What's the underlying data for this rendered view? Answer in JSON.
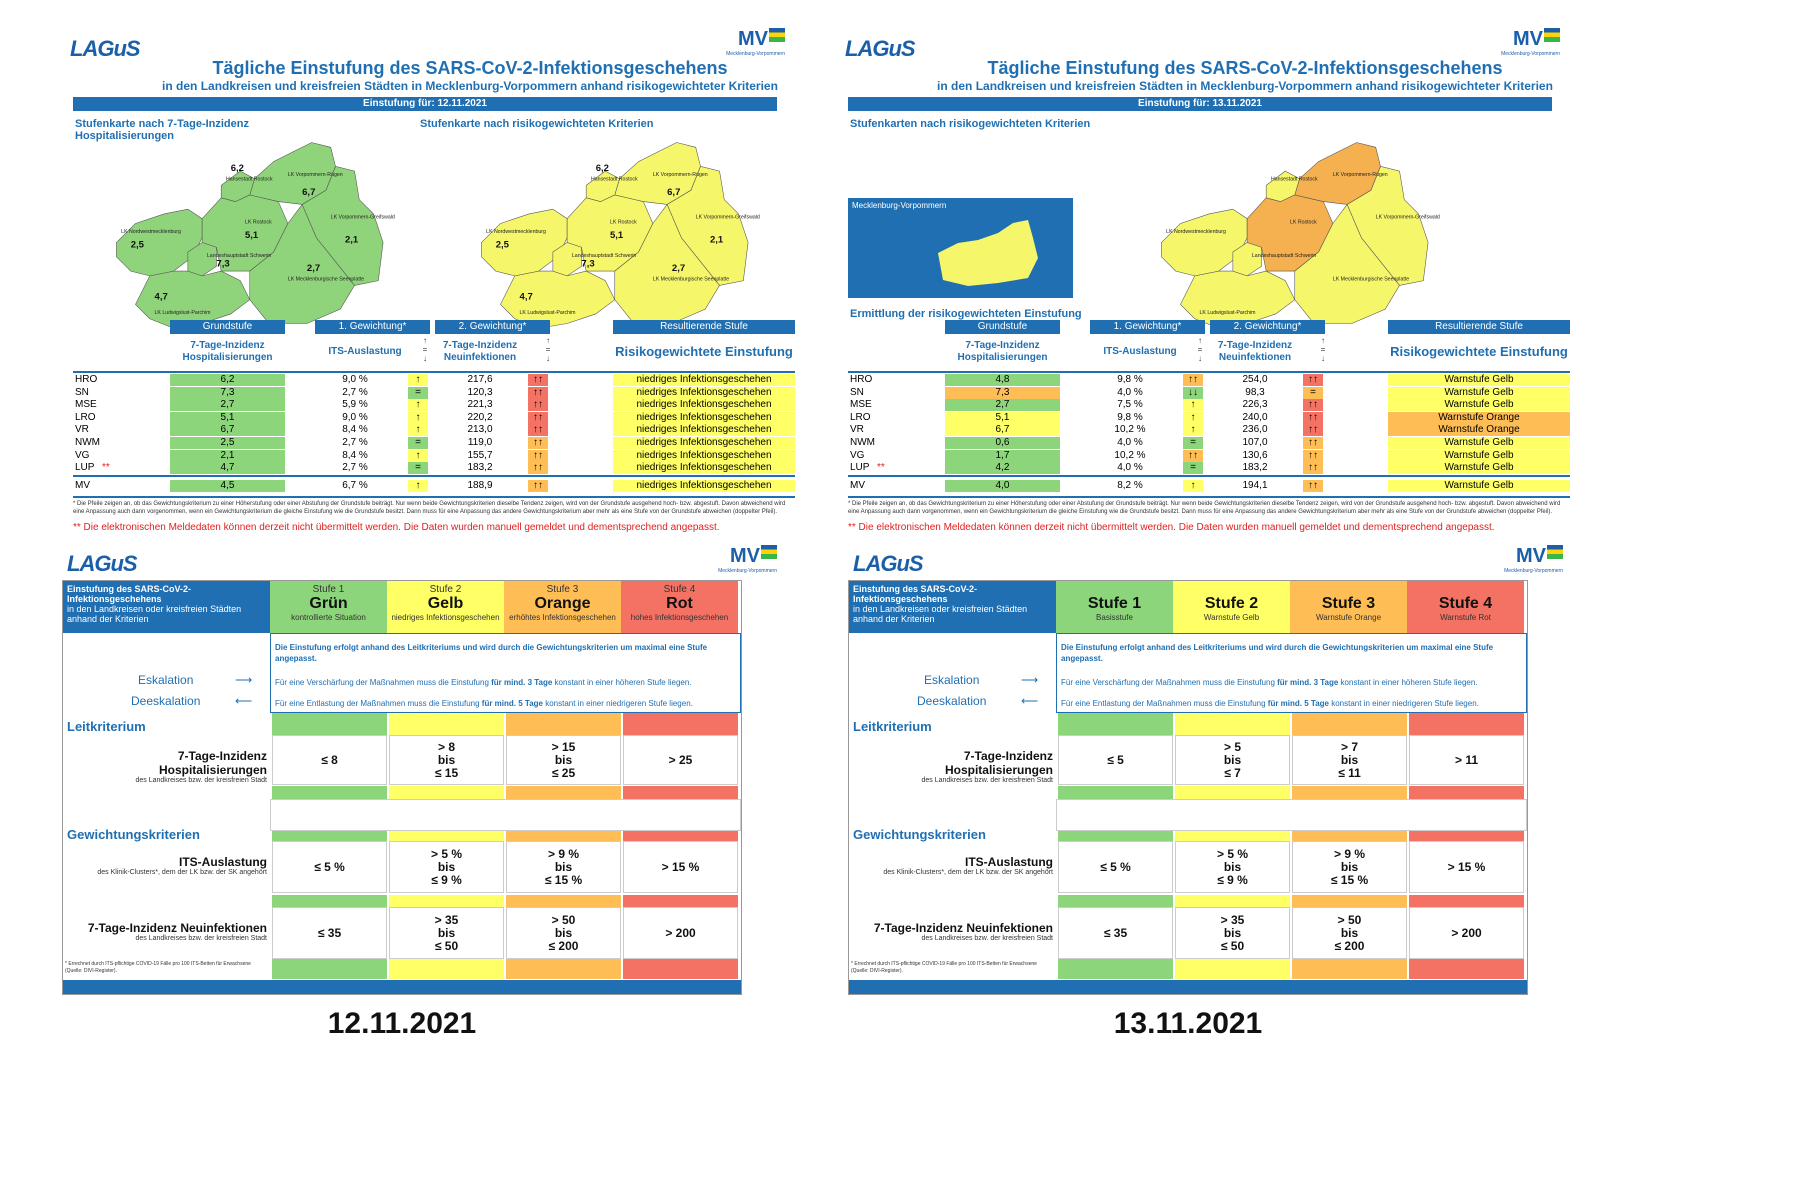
{
  "logos": {
    "lagus": "LAGuS",
    "mv": "MV",
    "mv_sub": "Mecklenburg-Vorpommern"
  },
  "colors": {
    "green": "#8cd57a",
    "yellow": "#ffff66",
    "orange": "#ffbe55",
    "red": "#f47264",
    "blue": "#1f6fb2",
    "map_green": "#8fd47a",
    "map_yellow": "#f6f66a",
    "map_orange": "#f5b04f"
  },
  "reports": [
    {
      "title": "Tägliche Einstufung des SARS-CoV-2-Infektionsgeschehens",
      "subtitle": "in den Landkreisen und kreisfreien Städten in Mecklenburg-Vorpommern anhand risikogewichteter Kriterien",
      "bar": "Einstufung für:   12.11.2021",
      "map1_title": "Stufenkarte nach 7-Tage-Inzidenz Hospitalisierungen",
      "map2_title": "Stufenkarte nach risikogewichteten Kriterien",
      "map_values": {
        "hro": "6,2",
        "vr": "6,7",
        "lro": "5,1",
        "nwm": "2,5",
        "vg": "2,1",
        "sn": "7,3",
        "mse": "2,7",
        "lup": "4,7"
      },
      "map_labels": {
        "hro": "Hansestadt Rostock",
        "vr": "LK Vorpommern-Rügen",
        "lro": "LK Rostock",
        "nwm": "LK Nordwestmecklenburg",
        "vg": "LK Vorpommern-Greifswald",
        "sn": "Landeshauptstadt Schwerin",
        "mse": "LK Mecklenburgische Seenplatte",
        "lup": "LK Ludwigslust-Parchim"
      },
      "headers": {
        "grundstufe": "Grundstufe",
        "g1": "1. Gewichtung*",
        "g2": "2. Gewichtung*",
        "result": "Resultierende Stufe",
        "c1": "7-Tage-Inzidenz Hospitalisierungen",
        "c2": "ITS-Auslastung",
        "c3": "7-Tage-Inzidenz Neuinfektionen",
        "c4": "Risikogewichtete Einstufung"
      },
      "rows": [
        {
          "name": "HRO",
          "v1": "6,2",
          "v2": "9,0 %",
          "a1": "↑",
          "v3": "217,6",
          "a2": "↑↑",
          "res": "niedriges Infektionsgeschehen"
        },
        {
          "name": "SN",
          "v1": "7,3",
          "v2": "2,7 %",
          "a1": "=",
          "v3": "120,3",
          "a2": "↑↑",
          "res": "niedriges Infektionsgeschehen"
        },
        {
          "name": "MSE",
          "v1": "2,7",
          "v2": "5,9 %",
          "a1": "↑",
          "v3": "221,3",
          "a2": "↑↑",
          "res": "niedriges Infektionsgeschehen"
        },
        {
          "name": "LRO",
          "v1": "5,1",
          "v2": "9,0 %",
          "a1": "↑",
          "v3": "220,2",
          "a2": "↑↑",
          "res": "niedriges Infektionsgeschehen"
        },
        {
          "name": "VR",
          "v1": "6,7",
          "v2": "8,4 %",
          "a1": "↑",
          "v3": "213,0",
          "a2": "↑↑",
          "res": "niedriges Infektionsgeschehen"
        },
        {
          "name": "NWM",
          "v1": "2,5",
          "v2": "2,7 %",
          "a1": "=",
          "v3": "119,0",
          "a2": "↑↑",
          "res": "niedriges Infektionsgeschehen"
        },
        {
          "name": "VG",
          "v1": "2,1",
          "v2": "8,4 %",
          "a1": "↑",
          "v3": "155,7",
          "a2": "↑↑",
          "res": "niedriges Infektionsgeschehen"
        },
        {
          "name": "LUP",
          "v1": "4,7",
          "v2": "2,7 %",
          "a1": "=",
          "v3": "183,2",
          "a2": "↑↑",
          "res": "niedriges Infektionsgeschehen"
        }
      ],
      "mv": {
        "name": "MV",
        "v1": "4,5",
        "v2": "6,7 %",
        "a1": "↑",
        "v3": "188,9",
        "a2": "↑↑",
        "res": "niedriges Infektionsgeschehen"
      },
      "footnote": "* Die Pfeile zeigen an, ob das Gewichtungskriterium zu einer Höherstufung oder einer Abstufung der Grundstufe beiträgt. Nur wenn beide Gewichtungskriterien dieselbe Tendenz zeigen, wird von der Grundstufe ausgehend hoch- bzw. abgestuft.  Davon abweichend wird eine Anpassung auch dann vorgenommen, wenn ein Gewichtungskriterium die gleiche Einstufung wie die Grundstufe besitzt. Dann muss für eine Anpassung das andere Gewichtungskriterium aber mehr als eine Stufe von der Grundstufe abweichen (doppelter Pfeil).",
      "red_note": "** Die elektronischen Meldedaten können derzeit nicht übermittelt werden. Die Daten wurden manuell gemeldet und dementsprechend angepasst."
    },
    {
      "title": "Tägliche Einstufung des SARS-CoV-2-Infektionsgeschehens",
      "subtitle": "in den Landkreisen und kreisfreien Städten in Mecklenburg-Vorpommern anhand risikogewichteter Kriterien",
      "bar": "Einstufung für:   13.11.2021",
      "map2_title": "Stufenkarten nach risikogewichteten Kriterien",
      "inset_title": "Mecklenburg-Vorpommern",
      "section": "Ermittlung der risikogewichteten Einstufung",
      "map_labels": {
        "hro": "Hansestadt Rostock",
        "vr": "LK Vorpommern-Rügen",
        "lro": "LK Rostock",
        "nwm": "LK Nordwestmecklenburg",
        "vg": "LK Vorpommern-Greifswald",
        "sn": "Landeshauptstadt Schwerin",
        "mse": "LK Mecklenburgische Seenplatte",
        "lup": "LK Ludwigslust-Parchim"
      },
      "headers": {
        "grundstufe": "Grundstufe",
        "g1": "1. Gewichtung*",
        "g2": "2. Gewichtung*",
        "result": "Resultierende Stufe",
        "c1": "7-Tage-Inzidenz Hospitalisierungen",
        "c2": "ITS-Auslastung",
        "c3": "7-Tage-Inzidenz Neuinfektionen",
        "c4": "Risikogewichtete Einstufung"
      },
      "rows": [
        {
          "name": "HRO",
          "v1": "4,8",
          "v2": "9,8 %",
          "a1": "↑↑",
          "v3": "254,0",
          "a2": "↑↑",
          "res": "Warnstufe Gelb"
        },
        {
          "name": "SN",
          "v1": "7,3",
          "v2": "4,0 %",
          "a1": "↓↓",
          "v3": "98,3",
          "a2": "=",
          "res": "Warnstufe Gelb"
        },
        {
          "name": "MSE",
          "v1": "2,7",
          "v2": "7,5 %",
          "a1": "↑",
          "v3": "226,3",
          "a2": "↑↑",
          "res": "Warnstufe Gelb"
        },
        {
          "name": "LRO",
          "v1": "5,1",
          "v2": "9,8 %",
          "a1": "↑",
          "v3": "240,0",
          "a2": "↑↑",
          "res": "Warnstufe Orange"
        },
        {
          "name": "VR",
          "v1": "6,7",
          "v2": "10,2 %",
          "a1": "↑",
          "v3": "236,0",
          "a2": "↑↑",
          "res": "Warnstufe Orange"
        },
        {
          "name": "NWM",
          "v1": "0,6",
          "v2": "4,0 %",
          "a1": "=",
          "v3": "107,0",
          "a2": "↑↑",
          "res": "Warnstufe Gelb"
        },
        {
          "name": "VG",
          "v1": "1,7",
          "v2": "10,2 %",
          "a1": "↑↑",
          "v3": "130,6",
          "a2": "↑↑",
          "res": "Warnstufe Gelb"
        },
        {
          "name": "LUP",
          "v1": "4,2",
          "v2": "4,0 %",
          "a1": "=",
          "v3": "183,2",
          "a2": "↑↑",
          "res": "Warnstufe Gelb"
        }
      ],
      "mv": {
        "name": "MV",
        "v1": "4,0",
        "v2": "8,2 %",
        "a1": "↑",
        "v3": "194,1",
        "a2": "↑↑",
        "res": "Warnstufe Gelb"
      },
      "footnote": "* Die Pfeile zeigen an, ob das Gewichtungskriterium zu einer Höherstufung oder einer Abstufung der Grundstufe beiträgt. Nur wenn beide Gewichtungskriterien dieselbe Tendenz zeigen, wird von der Grundstufe ausgehend hoch- bzw. abgestuft.  Davon abweichend wird eine Anpassung auch dann vorgenommen, wenn ein Gewichtungskriterium die gleiche Einstufung wie die Grundstufe besitzt. Dann muss für eine Anpassung das andere Gewichtungskriterium aber mehr als eine Stufe von der Grundstufe abweichen (doppelter Pfeil).",
      "red_note": "** Die elektronischen Meldedaten können derzeit nicht übermittelt werden. Die Daten wurden manuell gemeldet und dementsprechend angepasst."
    }
  ],
  "criteria": [
    {
      "head": "Einstufung des SARS-CoV-2-Infektionsgeschehens",
      "head_sub": "in den Landkreisen oder kreisfreien Städten anhand der Kriterien",
      "levels": [
        {
          "small": "Stufe 1",
          "big": "Grün",
          "sub": "kontrollierte Situation"
        },
        {
          "small": "Stufe 2",
          "big": "Gelb",
          "sub": "niedriges Infektionsgeschehen"
        },
        {
          "small": "Stufe 3",
          "big": "Orange",
          "sub": "erhöhtes Infektionsgeschehen"
        },
        {
          "small": "Stufe 4",
          "big": "Rot",
          "sub": "hohes Infektionsgeschehen"
        }
      ],
      "info": "Die Einstufung erfolgt anhand des Leitkriteriums und wird durch die Gewichtungskriterien um maximal eine Stufe angepasst.",
      "esk": "Eskalation",
      "desk": "Deeskalation",
      "esk_txt1": "Für eine Verschärfung der Maßnahmen muss die Einstufung ",
      "esk_bold": "für mind. 3 Tage",
      "esk_txt2": " konstant in einer höheren Stufe liegen.",
      "desk_txt1": "Für eine Entlastung der Maßnahmen muss die Einstufung ",
      "desk_bold": "für mind. 5 Tage",
      "desk_txt2": " konstant in einer niedrigeren Stufe liegen.",
      "leit": "Leitkriterium",
      "gew": "Gewichtungskriterien",
      "k1": {
        "name": "7-Tage-Inzidenz Hospitalisierungen",
        "sub": "des Landkreises bzw. der kreisfreien Stadt",
        "c": [
          "≤ 8",
          "> 8|bis|≤ 15",
          "> 15|bis|≤ 25",
          "> 25"
        ]
      },
      "k2": {
        "name": "ITS-Auslastung",
        "sub": "des Klinik-Clusters*, dem der LK bzw. der SK angehört",
        "c": [
          "≤ 5 %",
          "> 5 %|bis|≤ 9 %",
          "> 9 %|bis|≤ 15 %",
          "> 15 %"
        ]
      },
      "k3": {
        "name": "7-Tage-Inzidenz Neuinfektionen",
        "sub": "des Landkreises bzw. der kreisfreien Stadt",
        "c": [
          "≤ 35",
          "> 35|bis|≤ 50",
          "> 50|bis|≤ 200",
          "> 200"
        ]
      },
      "note": "* Errechnet durch ITS-pflichtige COVID-19 Fälle pro 100 ITS-Betten für Erwachsene (Quelle: DIVI-Register).",
      "caption": "12.11.2021"
    },
    {
      "head": "Einstufung des SARS-CoV-2-Infektionsgeschehens",
      "head_sub": "in den Landkreisen oder kreisfreien Städten anhand der Kriterien",
      "levels": [
        {
          "small": "",
          "big": "Stufe 1",
          "sub": "Basisstufe"
        },
        {
          "small": "",
          "big": "Stufe 2",
          "sub": "Warnstufe Gelb"
        },
        {
          "small": "",
          "big": "Stufe 3",
          "sub": "Warnstufe Orange"
        },
        {
          "small": "",
          "big": "Stufe 4",
          "sub": "Warnstufe Rot"
        }
      ],
      "info": "Die Einstufung erfolgt anhand des Leitkriteriums und wird durch die Gewichtungskriterien um maximal eine Stufe angepasst.",
      "esk": "Eskalation",
      "desk": "Deeskalation",
      "esk_txt1": "Für eine Verschärfung der Maßnahmen muss die Einstufung ",
      "esk_bold": "für mind. 3 Tage",
      "esk_txt2": " konstant in einer höheren Stufe liegen.",
      "desk_txt1": "Für eine Entlastung der Maßnahmen muss die Einstufung ",
      "desk_bold": "für mind. 5 Tage",
      "desk_txt2": " konstant in einer niedrigeren Stufe liegen.",
      "leit": "Leitkriterium",
      "gew": "Gewichtungskriterien",
      "k1": {
        "name": "7-Tage-Inzidenz Hospitalisierungen",
        "sub": "des Landkreises bzw. der kreisfreien Stadt",
        "c": [
          "≤ 5",
          "> 5|bis|≤ 7",
          "> 7|bis|≤ 11",
          "> 11"
        ]
      },
      "k2": {
        "name": "ITS-Auslastung",
        "sub": "des Klinik-Clusters*, dem der LK bzw. der SK angehört",
        "c": [
          "≤ 5 %",
          "> 5 %|bis|≤ 9 %",
          "> 9 %|bis|≤ 15 %",
          "> 15 %"
        ]
      },
      "k3": {
        "name": "7-Tage-Inzidenz Neuinfektionen",
        "sub": "des Landkreises bzw. der kreisfreien Stadt",
        "c": [
          "≤ 35",
          "> 35|bis|≤ 50",
          "> 50|bis|≤ 200",
          "> 200"
        ]
      },
      "note": "* Errechnet durch ITS-pflichtige COVID-19 Fälle pro 100 ITS-Betten für Erwachsene (Quelle: DIVI-Register).",
      "caption": "13.11.2021"
    }
  ]
}
